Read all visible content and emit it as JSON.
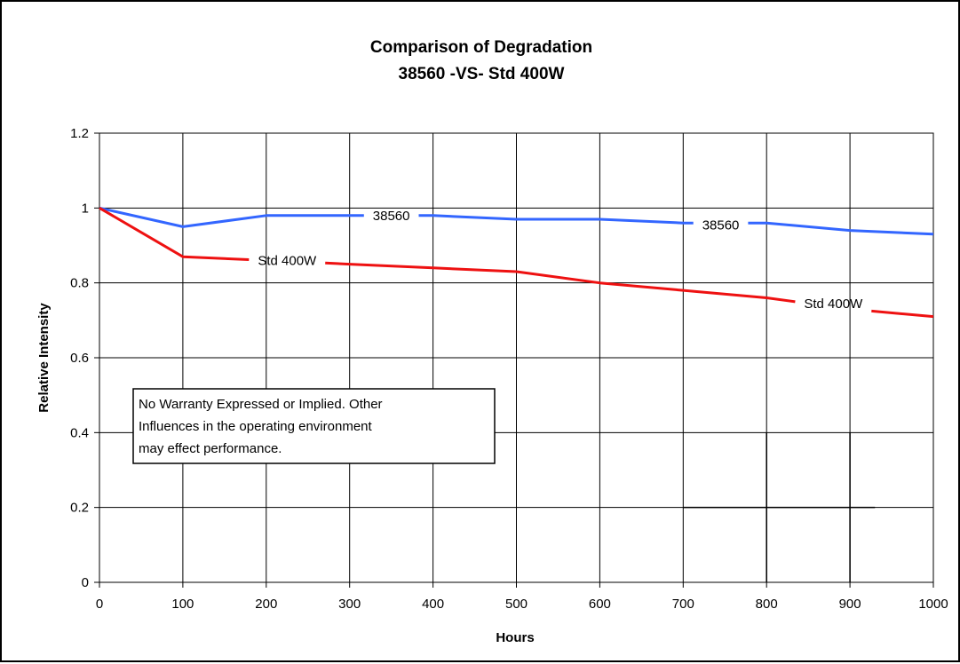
{
  "chart_data": {
    "type": "line",
    "title": "Comparison of Degradation",
    "subtitle": "38560 -VS- Std 400W",
    "xlabel": "Hours",
    "ylabel": "Relative Intensity",
    "xlim": [
      0,
      1000
    ],
    "ylim": [
      0,
      1.2
    ],
    "x_ticks": [
      "0",
      "100",
      "200",
      "300",
      "400",
      "500",
      "600",
      "700",
      "800",
      "900",
      "1000"
    ],
    "y_ticks": [
      "0",
      "0.2",
      "0.4",
      "0.6",
      "0.8",
      "1",
      "1.2"
    ],
    "grid": true,
    "series": [
      {
        "name": "38560",
        "color": "#3366ff",
        "x": [
          0,
          100,
          200,
          300,
          400,
          500,
          600,
          700,
          800,
          900,
          1000
        ],
        "values": [
          1.0,
          0.95,
          0.98,
          0.98,
          0.98,
          0.97,
          0.97,
          0.96,
          0.96,
          0.94,
          0.93
        ]
      },
      {
        "name": "Std 400W",
        "color": "#ee1111",
        "x": [
          0,
          100,
          200,
          300,
          400,
          500,
          600,
          700,
          800,
          900,
          1000
        ],
        "values": [
          1.0,
          0.87,
          0.86,
          0.85,
          0.84,
          0.83,
          0.8,
          0.78,
          0.76,
          0.73,
          0.71
        ]
      }
    ],
    "series_labels": [
      {
        "series": 0,
        "text": "38560",
        "x": 350,
        "y": 0.98
      },
      {
        "series": 0,
        "text": "38560",
        "x": 745,
        "y": 0.955
      },
      {
        "series": 1,
        "text": "Std 400W",
        "x": 225,
        "y": 0.86
      },
      {
        "series": 1,
        "text": "Std 400W",
        "x": 880,
        "y": 0.745
      }
    ],
    "annotation": [
      "No Warranty Expressed or Implied. Other",
      "Influences in the operating environment",
      "may effect performance."
    ]
  }
}
